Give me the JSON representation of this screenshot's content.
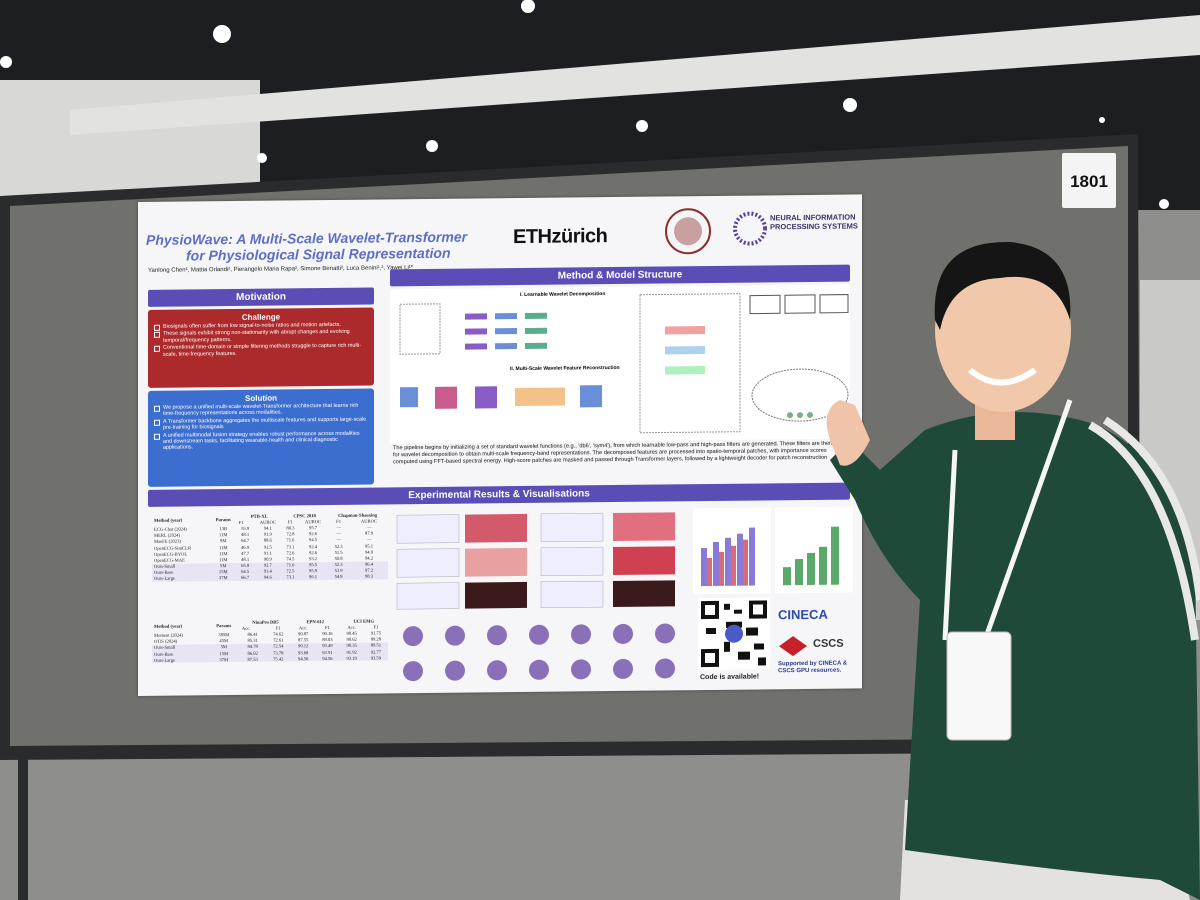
{
  "board_number": "1801",
  "poster": {
    "title_lines": [
      "PhysioWave: A Multi-Scale Wavelet-Transformer",
      "for Physiological Signal Representation"
    ],
    "authors": "Yanlong Chen¹, Mattia Orlandi², Pierangelo Maria Rapa², Simone Benatti², Luca Benini¹,², Yawei Li¹*",
    "logos": {
      "eth": "ETHzürich",
      "neurips": "NEURAL INFORMATION PROCESSING SYSTEMS"
    },
    "motivation": {
      "header": "Motivation",
      "challenge": {
        "title": "Challenge",
        "bullets": [
          "Biosignals often suffer from low signal-to-noise ratios and motion artefacts.",
          "These signals exhibit strong non-stationarity with abrupt changes and evolving temporal/frequency patterns.",
          "Conventional time-domain or simple filtering methods struggle to capture rich multi-scale, time-frequency features."
        ]
      },
      "solution": {
        "title": "Solution",
        "bullets": [
          "We propose a unified multi-scale wavelet-Transformer architecture that learns rich time-frequency representations across modalities.",
          "A Transformer backbone aggregates the multiscale features and supports large-scale pre-training for biosignals",
          "A unified multimodal fusion strategy enables robust performance across modalities and downstream tasks, facilitating wearable-health and clinical diagnostic applications."
        ]
      }
    },
    "method": {
      "header": "Method & Model Structure",
      "diagram_titles": [
        "I. Learnable Wavelet Decomposition",
        "II. Multi-Scale Wavelet Feature Reconstruction"
      ],
      "text": "The pipeline begins by initializing a set of standard wavelet functions (e.g., 'db6', 'sym4'), from which learnable low-pass and high-pass filters are generated. These filters are then used for wavelet decomposition to obtain multi-scale frequency-band representations. The decomposed features are processed into spatio-temporal patches, with importance scores computed using FFT-based spectral energy. High-score patches are masked and passed through Transformer layers, followed by a lightweight decoder for patch reconstruction"
    },
    "results": {
      "header": "Experimental Results & Visualisations",
      "ecg_table": {
        "groups": [
          "Method (year)",
          "Params",
          "PTB-XL",
          "CPSC 2018",
          "Chapman-Shaoxing"
        ],
        "subheaders": [
          "F1",
          "AUROC",
          "F1",
          "AUROC",
          "F1",
          "AUROC"
        ],
        "rows": [
          [
            "ECG-Chat (2024)",
            "13B",
            "55.9",
            "94.1",
            "80.3",
            "95.7",
            "—",
            "—"
          ],
          [
            "MERL (2024)",
            "11M",
            "48.1",
            "91.9",
            "72.8",
            "92.6",
            "—",
            "87.9"
          ],
          [
            "MaeFE (2023)",
            "9M",
            "64.7",
            "88.6",
            "71.6",
            "94.5",
            "—",
            "—"
          ],
          [
            "OpenECG-SimCLR",
            "11M",
            "46.9",
            "91.5",
            "73.1",
            "92.4",
            "52.3",
            "95.1"
          ],
          [
            "OpenECG-BYOL",
            "11M",
            "47.7",
            "91.1",
            "72.6",
            "92.6",
            "51.5",
            "94.9"
          ],
          [
            "OpenECG-MAE",
            "11M",
            "48.1",
            "90.9",
            "74.5",
            "93.2",
            "50.8",
            "94.2"
          ],
          [
            "Ours-Small",
            "5M",
            "65.8",
            "92.7",
            "71.6",
            "95.5",
            "52.3",
            "96.4"
          ],
          [
            "Ours-Base",
            "15M",
            "64.5",
            "93.4",
            "72.5",
            "95.9",
            "53.9",
            "97.2"
          ],
          [
            "Ours-Large",
            "37M",
            "66.7",
            "94.6",
            "73.1",
            "96.1",
            "54.8",
            "98.3"
          ]
        ]
      },
      "emg_table": {
        "groups": [
          "Method (year)",
          "Params",
          "NinaPro DB5",
          "EPN-612",
          "UCI EMG"
        ],
        "subheaders": [
          "Acc.",
          "F1",
          "Acc.",
          "F1",
          "Acc.",
          "F1"
        ],
        "rows": [
          [
            "Moment (2024)",
            "385M",
            "86.41",
            "74.62",
            "90.87",
            "90.16",
            "90.45",
            "91.75"
          ],
          [
            "OTiS (2024)",
            "45M",
            "85.31",
            "72.61",
            "87.55",
            "89.03",
            "90.62",
            "89.28"
          ],
          [
            "Ours-Small",
            "5M",
            "84.78",
            "72.54",
            "90.12",
            "93.49",
            "90.35",
            "89.51"
          ],
          [
            "Ours-Base",
            "15M",
            "86.02",
            "73.78",
            "93.68",
            "93.91",
            "91.92",
            "92.77"
          ],
          [
            "Ours-Large",
            "37M",
            "87.53",
            "75.42",
            "94.50",
            "94.56",
            "93.19",
            "93.59"
          ]
        ]
      },
      "code_note": "Code is available!",
      "sponsors": [
        "CINECA",
        "CSCS"
      ],
      "support_note": "Supported by CINECA & CSCS GPU resources."
    }
  }
}
